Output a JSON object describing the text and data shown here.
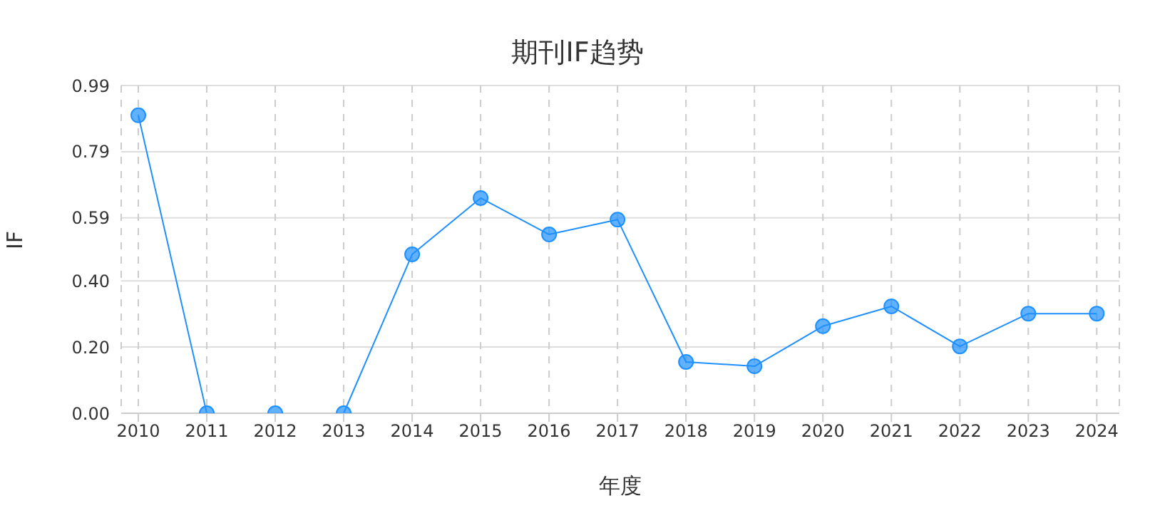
{
  "chart_data": {
    "type": "line",
    "title": "期刊IF趋势",
    "xlabel": "年度",
    "ylabel": "IF",
    "categories": [
      "2010",
      "2011",
      "2012",
      "2013",
      "2014",
      "2015",
      "2016",
      "2017",
      "2018",
      "2019",
      "2020",
      "2021",
      "2022",
      "2023",
      "2024"
    ],
    "series": [
      {
        "color": "#1e90ff",
        "values": [
          0.9,
          0,
          0,
          0,
          0.48,
          0.65,
          0.54,
          0.585,
          0.155,
          0.142,
          0.263,
          0.323,
          0.202,
          0.301,
          0.301
        ]
      }
    ],
    "ylim": [
      0,
      0.99
    ],
    "yticks": [
      {
        "value": 0,
        "label": "0.00"
      },
      {
        "value": 0.2,
        "label": "0.20"
      },
      {
        "value": 0.4,
        "label": "0.40"
      },
      0.59,
      0.79,
      0.99
    ],
    "grid": true,
    "marker": "circle",
    "line_style": "solid"
  }
}
